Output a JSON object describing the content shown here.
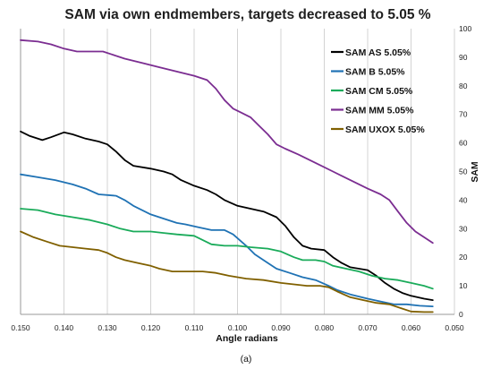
{
  "caption": "(a)",
  "chart_data": {
    "type": "line",
    "title": "SAM via own endmembers, targets decreased to 5.05 %",
    "xlabel": "Angle radians",
    "ylabel": "SAM",
    "xlim": [
      0.15,
      0.05
    ],
    "ylim": [
      0,
      100
    ],
    "x_reversed": true,
    "y_axis_side": "right",
    "xticks": [
      "0.150",
      "0.140",
      "0.130",
      "0.120",
      "0.110",
      "0.100",
      "0.090",
      "0.080",
      "0.070",
      "0.060",
      "0.050"
    ],
    "yticks": [
      "0",
      "10",
      "20",
      "30",
      "40",
      "50",
      "60",
      "70",
      "80",
      "90",
      "100"
    ],
    "grid": "vertical",
    "legend_position": "top-right",
    "series": [
      {
        "name": "SAM AS 5.05%",
        "color": "#000000",
        "points": [
          [
            0.15,
            64
          ],
          [
            0.148,
            62.5
          ],
          [
            0.145,
            61
          ],
          [
            0.143,
            62
          ],
          [
            0.14,
            63.7
          ],
          [
            0.138,
            63
          ],
          [
            0.135,
            61.5
          ],
          [
            0.132,
            60.5
          ],
          [
            0.13,
            59.5
          ],
          [
            0.128,
            57
          ],
          [
            0.126,
            54
          ],
          [
            0.124,
            52
          ],
          [
            0.12,
            51
          ],
          [
            0.117,
            50
          ],
          [
            0.115,
            49
          ],
          [
            0.113,
            47
          ],
          [
            0.11,
            45
          ],
          [
            0.107,
            43.5
          ],
          [
            0.105,
            42
          ],
          [
            0.103,
            40
          ],
          [
            0.1,
            38
          ],
          [
            0.097,
            37
          ],
          [
            0.094,
            36
          ],
          [
            0.091,
            34
          ],
          [
            0.089,
            31
          ],
          [
            0.087,
            27
          ],
          [
            0.085,
            24
          ],
          [
            0.083,
            23
          ],
          [
            0.08,
            22.5
          ],
          [
            0.078,
            20
          ],
          [
            0.076,
            18
          ],
          [
            0.074,
            16.5
          ],
          [
            0.072,
            16
          ],
          [
            0.07,
            15.5
          ],
          [
            0.068,
            13.5
          ],
          [
            0.066,
            11
          ],
          [
            0.064,
            9
          ],
          [
            0.062,
            7.5
          ],
          [
            0.06,
            6.5
          ],
          [
            0.057,
            5.5
          ],
          [
            0.055,
            5
          ]
        ]
      },
      {
        "name": "SAM B 5.05%",
        "color": "#1f72b4",
        "points": [
          [
            0.15,
            49
          ],
          [
            0.146,
            48
          ],
          [
            0.142,
            47
          ],
          [
            0.138,
            45.5
          ],
          [
            0.135,
            44
          ],
          [
            0.132,
            42
          ],
          [
            0.128,
            41.5
          ],
          [
            0.126,
            40
          ],
          [
            0.124,
            38
          ],
          [
            0.12,
            35
          ],
          [
            0.117,
            33.5
          ],
          [
            0.114,
            32
          ],
          [
            0.112,
            31.5
          ],
          [
            0.109,
            30.5
          ],
          [
            0.106,
            29.5
          ],
          [
            0.103,
            29.5
          ],
          [
            0.101,
            28
          ],
          [
            0.098,
            24
          ],
          [
            0.096,
            21
          ],
          [
            0.093,
            18
          ],
          [
            0.091,
            16
          ],
          [
            0.088,
            14.5
          ],
          [
            0.085,
            13
          ],
          [
            0.082,
            12
          ],
          [
            0.079,
            10
          ],
          [
            0.077,
            8.5
          ],
          [
            0.074,
            7
          ],
          [
            0.07,
            5.5
          ],
          [
            0.067,
            4.5
          ],
          [
            0.064,
            3.5
          ],
          [
            0.061,
            3.5
          ],
          [
            0.058,
            3
          ],
          [
            0.055,
            2.8
          ]
        ]
      },
      {
        "name": "SAM CM 5.05%",
        "color": "#1aab5a",
        "points": [
          [
            0.15,
            37
          ],
          [
            0.146,
            36.5
          ],
          [
            0.142,
            35
          ],
          [
            0.138,
            34
          ],
          [
            0.134,
            33
          ],
          [
            0.13,
            31.5
          ],
          [
            0.127,
            30
          ],
          [
            0.124,
            29
          ],
          [
            0.12,
            29
          ],
          [
            0.117,
            28.5
          ],
          [
            0.114,
            28
          ],
          [
            0.11,
            27.5
          ],
          [
            0.108,
            26
          ],
          [
            0.106,
            24.5
          ],
          [
            0.103,
            24
          ],
          [
            0.1,
            24
          ],
          [
            0.097,
            23.5
          ],
          [
            0.093,
            23
          ],
          [
            0.09,
            22
          ],
          [
            0.087,
            20
          ],
          [
            0.085,
            19
          ],
          [
            0.082,
            19
          ],
          [
            0.08,
            18.5
          ],
          [
            0.078,
            17
          ],
          [
            0.075,
            16
          ],
          [
            0.072,
            15
          ],
          [
            0.069,
            13.5
          ],
          [
            0.066,
            12.5
          ],
          [
            0.063,
            12
          ],
          [
            0.06,
            11
          ],
          [
            0.057,
            10
          ],
          [
            0.055,
            9
          ]
        ]
      },
      {
        "name": "SAM MM 5.05%",
        "color": "#7b2d91",
        "points": [
          [
            0.15,
            96
          ],
          [
            0.146,
            95.5
          ],
          [
            0.143,
            94.5
          ],
          [
            0.14,
            93
          ],
          [
            0.137,
            92
          ],
          [
            0.134,
            92
          ],
          [
            0.131,
            92
          ],
          [
            0.129,
            91
          ],
          [
            0.126,
            89.5
          ],
          [
            0.122,
            88
          ],
          [
            0.118,
            86.5
          ],
          [
            0.114,
            85
          ],
          [
            0.11,
            83.5
          ],
          [
            0.107,
            82
          ],
          [
            0.105,
            79
          ],
          [
            0.103,
            75
          ],
          [
            0.101,
            72
          ],
          [
            0.099,
            70.5
          ],
          [
            0.097,
            69
          ],
          [
            0.095,
            66
          ],
          [
            0.093,
            63
          ],
          [
            0.091,
            59.5
          ],
          [
            0.089,
            58
          ],
          [
            0.086,
            56
          ],
          [
            0.082,
            53
          ],
          [
            0.078,
            50
          ],
          [
            0.074,
            47
          ],
          [
            0.07,
            44
          ],
          [
            0.067,
            42
          ],
          [
            0.065,
            40
          ],
          [
            0.063,
            36
          ],
          [
            0.061,
            32
          ],
          [
            0.059,
            29
          ],
          [
            0.057,
            27
          ],
          [
            0.055,
            25
          ]
        ]
      },
      {
        "name": "SAM UXOX 5.05%",
        "color": "#806000",
        "points": [
          [
            0.15,
            29
          ],
          [
            0.147,
            27
          ],
          [
            0.144,
            25.5
          ],
          [
            0.141,
            24
          ],
          [
            0.138,
            23.5
          ],
          [
            0.135,
            23
          ],
          [
            0.132,
            22.5
          ],
          [
            0.13,
            21.5
          ],
          [
            0.128,
            20
          ],
          [
            0.126,
            19
          ],
          [
            0.123,
            18
          ],
          [
            0.12,
            17
          ],
          [
            0.118,
            16
          ],
          [
            0.115,
            15
          ],
          [
            0.112,
            15
          ],
          [
            0.108,
            15
          ],
          [
            0.105,
            14.5
          ],
          [
            0.102,
            13.5
          ],
          [
            0.098,
            12.5
          ],
          [
            0.094,
            12
          ],
          [
            0.09,
            11
          ],
          [
            0.087,
            10.5
          ],
          [
            0.084,
            10
          ],
          [
            0.081,
            10
          ],
          [
            0.079,
            9.5
          ],
          [
            0.077,
            8
          ],
          [
            0.074,
            6
          ],
          [
            0.071,
            5
          ],
          [
            0.068,
            4
          ],
          [
            0.065,
            3.5
          ],
          [
            0.062,
            2
          ],
          [
            0.06,
            1
          ],
          [
            0.057,
            0.8
          ],
          [
            0.055,
            0.8
          ]
        ]
      }
    ]
  }
}
